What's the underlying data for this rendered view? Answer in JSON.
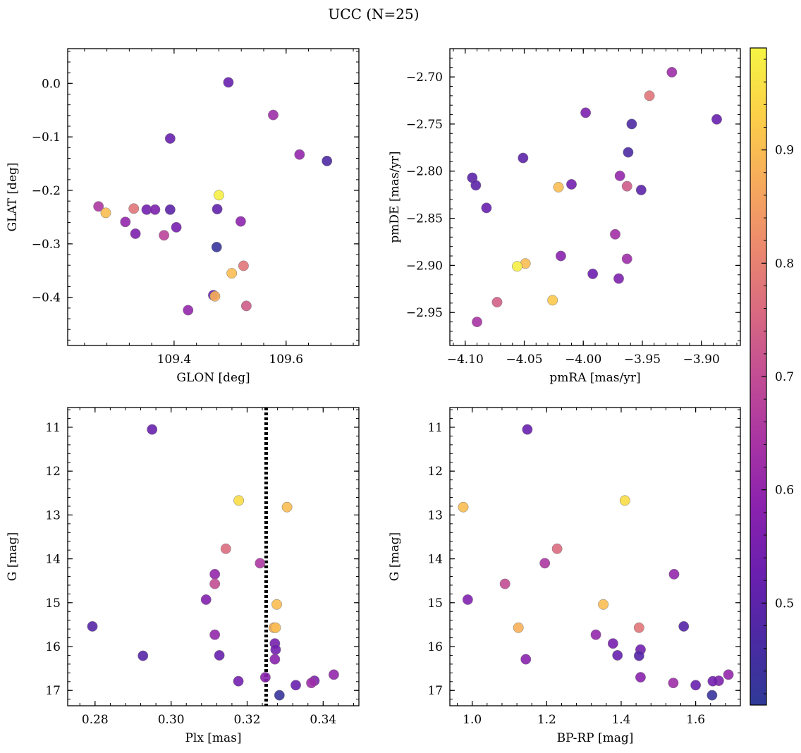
{
  "title": "UCC (N=25)",
  "colorbar": {
    "range": [
      0.41,
      0.99
    ],
    "ticks": [
      0.5,
      0.6,
      0.7,
      0.8,
      0.9
    ],
    "tick_labels": [
      "0.5",
      "0.6",
      "0.7",
      "0.8",
      "0.9"
    ],
    "colormap": "plasma"
  },
  "chart_data": [
    {
      "type": "scatter",
      "xlabel": "GLON [deg]",
      "ylabel": "GLAT [deg]",
      "xlim": [
        109.21,
        109.73
      ],
      "ylim": [
        -0.49,
        0.065
      ],
      "invert_y": false,
      "xticks": [
        109.4,
        109.6
      ],
      "xtick_labels": [
        "109.4",
        "109.6"
      ],
      "yticks": [
        -0.4,
        -0.3,
        -0.2,
        -0.1,
        0.0
      ],
      "ytick_labels": [
        "−0.4",
        "−0.3",
        "−0.2",
        "−0.1",
        "0.0"
      ],
      "points": [
        {
          "x": 109.497,
          "y": 0.002,
          "c": 0.52
        },
        {
          "x": 109.577,
          "y": -0.059,
          "c": 0.62
        },
        {
          "x": 109.393,
          "y": -0.103,
          "c": 0.52
        },
        {
          "x": 109.624,
          "y": -0.133,
          "c": 0.6
        },
        {
          "x": 109.673,
          "y": -0.145,
          "c": 0.47
        },
        {
          "x": 109.48,
          "y": -0.209,
          "c": 0.98
        },
        {
          "x": 109.265,
          "y": -0.23,
          "c": 0.65
        },
        {
          "x": 109.278,
          "y": -0.242,
          "c": 0.9
        },
        {
          "x": 109.328,
          "y": -0.234,
          "c": 0.78
        },
        {
          "x": 109.351,
          "y": -0.236,
          "c": 0.54
        },
        {
          "x": 109.366,
          "y": -0.236,
          "c": 0.56
        },
        {
          "x": 109.393,
          "y": -0.236,
          "c": 0.5
        },
        {
          "x": 109.477,
          "y": -0.235,
          "c": 0.51
        },
        {
          "x": 109.313,
          "y": -0.259,
          "c": 0.6
        },
        {
          "x": 109.519,
          "y": -0.258,
          "c": 0.59
        },
        {
          "x": 109.404,
          "y": -0.269,
          "c": 0.55
        },
        {
          "x": 109.331,
          "y": -0.281,
          "c": 0.56
        },
        {
          "x": 109.382,
          "y": -0.284,
          "c": 0.68
        },
        {
          "x": 109.476,
          "y": -0.306,
          "c": 0.43
        },
        {
          "x": 109.524,
          "y": -0.341,
          "c": 0.78
        },
        {
          "x": 109.503,
          "y": -0.355,
          "c": 0.9
        },
        {
          "x": 109.47,
          "y": -0.396,
          "c": 0.52
        },
        {
          "x": 109.473,
          "y": -0.398,
          "c": 0.88
        },
        {
          "x": 109.529,
          "y": -0.416,
          "c": 0.73
        },
        {
          "x": 109.425,
          "y": -0.424,
          "c": 0.6
        }
      ]
    },
    {
      "type": "scatter",
      "xlabel": "pmRA [mas/yr]",
      "ylabel": "pmDE [mas/yr]",
      "xlim": [
        -4.113,
        -3.867
      ],
      "ylim": [
        -2.985,
        -2.67
      ],
      "invert_y": false,
      "xticks": [
        -4.1,
        -4.05,
        -4.0,
        -3.95,
        -3.9
      ],
      "xtick_labels": [
        "−4.10",
        "−4.05",
        "−4.00",
        "−3.95",
        "−3.90"
      ],
      "yticks": [
        -2.95,
        -2.9,
        -2.85,
        -2.8,
        -2.75,
        -2.7
      ],
      "ytick_labels": [
        "−2.95",
        "−2.90",
        "−2.85",
        "−2.80",
        "−2.75",
        "−2.70"
      ],
      "points": [
        {
          "x": -3.925,
          "y": -2.695,
          "c": 0.62
        },
        {
          "x": -3.944,
          "y": -2.72,
          "c": 0.78
        },
        {
          "x": -3.998,
          "y": -2.738,
          "c": 0.56
        },
        {
          "x": -3.887,
          "y": -2.745,
          "c": 0.52
        },
        {
          "x": -3.959,
          "y": -2.75,
          "c": 0.47
        },
        {
          "x": -3.962,
          "y": -2.78,
          "c": 0.47
        },
        {
          "x": -4.051,
          "y": -2.786,
          "c": 0.5
        },
        {
          "x": -4.094,
          "y": -2.807,
          "c": 0.5
        },
        {
          "x": -4.091,
          "y": -2.815,
          "c": 0.5
        },
        {
          "x": -3.969,
          "y": -2.805,
          "c": 0.6
        },
        {
          "x": -4.01,
          "y": -2.814,
          "c": 0.54
        },
        {
          "x": -4.021,
          "y": -2.817,
          "c": 0.9
        },
        {
          "x": -3.963,
          "y": -2.816,
          "c": 0.73
        },
        {
          "x": -3.951,
          "y": -2.82,
          "c": 0.5
        },
        {
          "x": -4.082,
          "y": -2.839,
          "c": 0.52
        },
        {
          "x": -3.973,
          "y": -2.867,
          "c": 0.63
        },
        {
          "x": -4.019,
          "y": -2.89,
          "c": 0.58
        },
        {
          "x": -3.963,
          "y": -2.893,
          "c": 0.62
        },
        {
          "x": -4.049,
          "y": -2.898,
          "c": 0.9
        },
        {
          "x": -4.056,
          "y": -2.901,
          "c": 0.98
        },
        {
          "x": -3.992,
          "y": -2.909,
          "c": 0.53
        },
        {
          "x": -3.97,
          "y": -2.914,
          "c": 0.56
        },
        {
          "x": -4.026,
          "y": -2.937,
          "c": 0.92
        },
        {
          "x": -4.073,
          "y": -2.939,
          "c": 0.74
        },
        {
          "x": -4.09,
          "y": -2.96,
          "c": 0.64
        }
      ]
    },
    {
      "type": "scatter",
      "xlabel": "Plx [mas]",
      "ylabel": "G [mag]",
      "xlim": [
        0.2728,
        0.3494
      ],
      "ylim": [
        10.55,
        17.35
      ],
      "invert_y": true,
      "xticks": [
        0.28,
        0.3,
        0.32,
        0.34
      ],
      "xtick_labels": [
        "0.28",
        "0.30",
        "0.32",
        "0.34"
      ],
      "yticks": [
        11,
        12,
        13,
        14,
        15,
        16,
        17
      ],
      "ytick_labels": [
        "11",
        "12",
        "13",
        "14",
        "15",
        "16",
        "17"
      ],
      "vline": {
        "x": 0.325,
        "style": "dotted"
      },
      "points": [
        {
          "x": 0.295,
          "y": 11.05,
          "c": 0.52
        },
        {
          "x": 0.3178,
          "y": 12.67,
          "c": 0.95
        },
        {
          "x": 0.3305,
          "y": 12.82,
          "c": 0.9
        },
        {
          "x": 0.3144,
          "y": 13.77,
          "c": 0.76
        },
        {
          "x": 0.3234,
          "y": 14.1,
          "c": 0.65
        },
        {
          "x": 0.3115,
          "y": 14.35,
          "c": 0.6
        },
        {
          "x": 0.3115,
          "y": 14.57,
          "c": 0.7
        },
        {
          "x": 0.3092,
          "y": 14.93,
          "c": 0.57
        },
        {
          "x": 0.3278,
          "y": 15.04,
          "c": 0.9
        },
        {
          "x": 0.2793,
          "y": 15.54,
          "c": 0.49
        },
        {
          "x": 0.327,
          "y": 15.57,
          "c": 0.88
        },
        {
          "x": 0.3275,
          "y": 15.57,
          "c": 0.9
        },
        {
          "x": 0.3115,
          "y": 15.73,
          "c": 0.6
        },
        {
          "x": 0.3273,
          "y": 15.93,
          "c": 0.55
        },
        {
          "x": 0.3275,
          "y": 16.07,
          "c": 0.54
        },
        {
          "x": 0.2926,
          "y": 16.21,
          "c": 0.49
        },
        {
          "x": 0.3127,
          "y": 16.2,
          "c": 0.52
        },
        {
          "x": 0.3273,
          "y": 16.29,
          "c": 0.58
        },
        {
          "x": 0.3428,
          "y": 16.64,
          "c": 0.6
        },
        {
          "x": 0.3248,
          "y": 16.7,
          "c": 0.58
        },
        {
          "x": 0.3377,
          "y": 16.78,
          "c": 0.56
        },
        {
          "x": 0.3177,
          "y": 16.79,
          "c": 0.54
        },
        {
          "x": 0.3369,
          "y": 16.83,
          "c": 0.62
        },
        {
          "x": 0.3328,
          "y": 16.88,
          "c": 0.52
        },
        {
          "x": 0.3285,
          "y": 17.11,
          "c": 0.43
        }
      ]
    },
    {
      "type": "scatter",
      "xlabel": "BP-RP [mag]",
      "ylabel": "G [mag]",
      "xlim": [
        0.94,
        1.72
      ],
      "ylim": [
        10.55,
        17.35
      ],
      "invert_y": true,
      "xticks": [
        1.0,
        1.2,
        1.4,
        1.6
      ],
      "xtick_labels": [
        "1.0",
        "1.2",
        "1.4",
        "1.6"
      ],
      "yticks": [
        11,
        12,
        13,
        14,
        15,
        16,
        17
      ],
      "ytick_labels": [
        "11",
        "12",
        "13",
        "14",
        "15",
        "16",
        "17"
      ],
      "points": [
        {
          "x": 1.148,
          "y": 11.05,
          "c": 0.52
        },
        {
          "x": 1.41,
          "y": 12.67,
          "c": 0.95
        },
        {
          "x": 0.976,
          "y": 12.82,
          "c": 0.9
        },
        {
          "x": 1.228,
          "y": 13.77,
          "c": 0.76
        },
        {
          "x": 1.195,
          "y": 14.1,
          "c": 0.65
        },
        {
          "x": 1.542,
          "y": 14.35,
          "c": 0.6
        },
        {
          "x": 1.088,
          "y": 14.57,
          "c": 0.7
        },
        {
          "x": 0.988,
          "y": 14.93,
          "c": 0.57
        },
        {
          "x": 1.352,
          "y": 15.04,
          "c": 0.9
        },
        {
          "x": 1.568,
          "y": 15.54,
          "c": 0.49
        },
        {
          "x": 1.124,
          "y": 15.57,
          "c": 0.88
        },
        {
          "x": 1.448,
          "y": 15.57,
          "c": 0.78
        },
        {
          "x": 1.332,
          "y": 15.73,
          "c": 0.6
        },
        {
          "x": 1.378,
          "y": 15.93,
          "c": 0.55
        },
        {
          "x": 1.452,
          "y": 16.07,
          "c": 0.54
        },
        {
          "x": 1.39,
          "y": 16.2,
          "c": 0.52
        },
        {
          "x": 1.448,
          "y": 16.21,
          "c": 0.49
        },
        {
          "x": 1.144,
          "y": 16.29,
          "c": 0.58
        },
        {
          "x": 1.688,
          "y": 16.64,
          "c": 0.6
        },
        {
          "x": 1.452,
          "y": 16.7,
          "c": 0.58
        },
        {
          "x": 1.662,
          "y": 16.78,
          "c": 0.56
        },
        {
          "x": 1.646,
          "y": 16.79,
          "c": 0.54
        },
        {
          "x": 1.54,
          "y": 16.83,
          "c": 0.62
        },
        {
          "x": 1.6,
          "y": 16.88,
          "c": 0.52
        },
        {
          "x": 1.644,
          "y": 17.11,
          "c": 0.43
        }
      ]
    }
  ]
}
